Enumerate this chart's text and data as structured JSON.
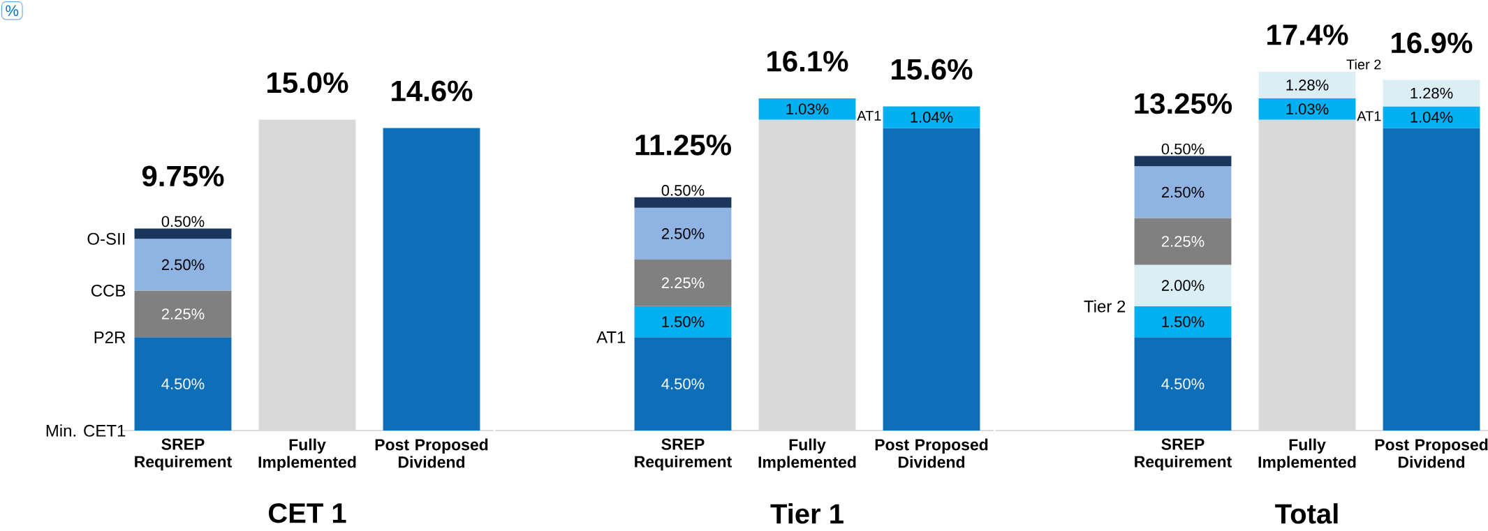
{
  "chart_data": [
    {
      "type": "bar",
      "stacked": true,
      "xlabel": "CET 1",
      "annotations": [
        "%"
      ],
      "categories": [
        "SREP Requirement",
        "Fully Implemented",
        "Post Proposed Dividend"
      ],
      "series": [
        {
          "values": [
            null,
            15.0,
            14.6
          ],
          "colors": [
            null,
            "#d9d9d9",
            "#0e6eb8"
          ]
        },
        {
          "name": "Min. CET1",
          "color": "#0e6eb8",
          "values": [
            4.5,
            null,
            null
          ],
          "value_labels": [
            "4.50%",
            null,
            null
          ]
        },
        {
          "name": "P2R",
          "color": "#808080",
          "values": [
            2.25,
            null,
            null
          ],
          "value_labels": [
            "2.25%",
            null,
            null
          ]
        },
        {
          "name": "CCB",
          "color": "#8fb4e3",
          "values": [
            2.5,
            null,
            null
          ],
          "value_labels": [
            "2.50%",
            null,
            null
          ]
        },
        {
          "name": "O-SII",
          "color": "#1b365d",
          "values": [
            0.5,
            null,
            null
          ],
          "value_labels": [
            "0.50%",
            null,
            null
          ]
        }
      ],
      "totals": [
        "9.75%",
        "15.0%",
        "14.6%"
      ]
    },
    {
      "type": "bar",
      "stacked": true,
      "xlabel": "Tier 1",
      "categories": [
        "SREP Requirement",
        "Fully Implemented",
        "Post Proposed Dividend"
      ],
      "series": [
        {
          "values": [
            null,
            15.0,
            14.6
          ],
          "colors": [
            null,
            "#d9d9d9",
            "#0e6eb8"
          ]
        },
        {
          "color": "#0e6eb8",
          "values": [
            4.5,
            null,
            null
          ],
          "value_labels": [
            "4.50%",
            null,
            null
          ]
        },
        {
          "name": "AT1",
          "color": "#00b0f0",
          "values": [
            1.5,
            1.03,
            1.04
          ],
          "value_labels": [
            "1.50%",
            "1.03%",
            "1.04%"
          ]
        },
        {
          "color": "#808080",
          "values": [
            2.25,
            null,
            null
          ],
          "value_labels": [
            "2.25%",
            null,
            null
          ]
        },
        {
          "color": "#8fb4e3",
          "values": [
            2.5,
            null,
            null
          ],
          "value_labels": [
            "2.50%",
            null,
            null
          ]
        },
        {
          "color": "#1b365d",
          "values": [
            0.5,
            null,
            null
          ],
          "value_labels": [
            "0.50%",
            null,
            null
          ]
        }
      ],
      "annotations": [
        "AT1"
      ],
      "totals": [
        "11.25%",
        "16.1%",
        "15.6%"
      ]
    },
    {
      "type": "bar",
      "stacked": true,
      "xlabel": "Total",
      "categories": [
        "SREP Requirement",
        "Fully Implemented",
        "Post Proposed Dividend"
      ],
      "series": [
        {
          "values": [
            null,
            15.0,
            14.6
          ],
          "colors": [
            null,
            "#d9d9d9",
            "#0e6eb8"
          ]
        },
        {
          "color": "#0e6eb8",
          "values": [
            4.5,
            null,
            null
          ],
          "value_labels": [
            "4.50%",
            null,
            null
          ]
        },
        {
          "color": "#00b0f0",
          "values": [
            1.5,
            1.03,
            1.04
          ],
          "value_labels": [
            "1.50%",
            "1.03%",
            "1.04%"
          ]
        },
        {
          "name": "Tier 2",
          "color": "#dbeef4",
          "values": [
            2.0,
            1.28,
            1.28
          ],
          "value_labels": [
            "2.00%",
            "1.28%",
            "1.28%"
          ]
        },
        {
          "color": "#808080",
          "values": [
            2.25,
            null,
            null
          ],
          "value_labels": [
            "2.25%",
            null,
            null
          ]
        },
        {
          "color": "#8fb4e3",
          "values": [
            2.5,
            null,
            null
          ],
          "value_labels": [
            "2.50%",
            null,
            null
          ]
        },
        {
          "color": "#1b365d",
          "values": [
            0.5,
            null,
            null
          ],
          "value_labels": [
            "0.50%",
            null,
            null
          ]
        }
      ],
      "annotations": [
        "Tier 2",
        "AT1"
      ],
      "totals": [
        "13.25%",
        "17.4%",
        "16.9%"
      ]
    }
  ]
}
